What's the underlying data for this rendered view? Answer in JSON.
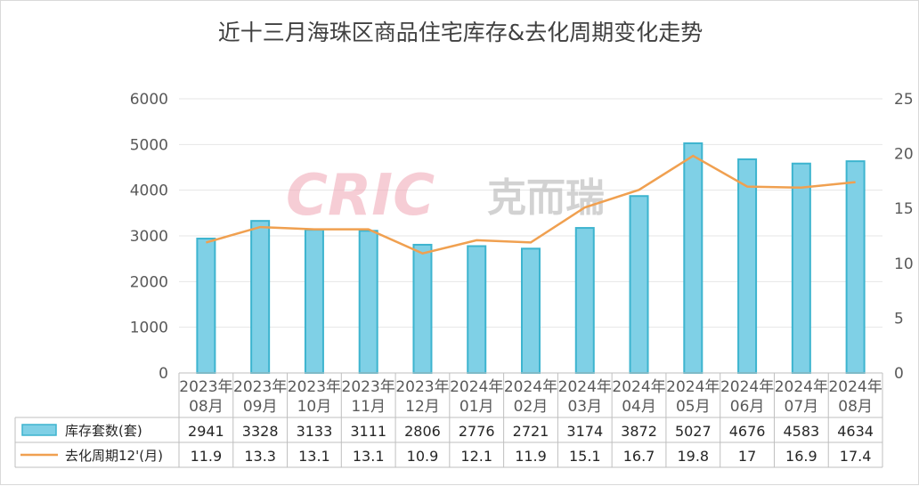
{
  "chart_data": {
    "type": "bar",
    "title": "近十三月海珠区商品住宅库存&去化周期变化走势",
    "categories": [
      [
        "2023年",
        "08月"
      ],
      [
        "2023年",
        "09月"
      ],
      [
        "2023年",
        "10月"
      ],
      [
        "2023年",
        "11月"
      ],
      [
        "2023年",
        "12月"
      ],
      [
        "2024年",
        "01月"
      ],
      [
        "2024年",
        "02月"
      ],
      [
        "2024年",
        "03月"
      ],
      [
        "2024年",
        "04月"
      ],
      [
        "2024年",
        "05月"
      ],
      [
        "2024年",
        "06月"
      ],
      [
        "2024年",
        "07月"
      ],
      [
        "2024年",
        "08月"
      ]
    ],
    "series": [
      {
        "name": "库存套数(套)",
        "type": "bar",
        "axis": "left",
        "color": "#7fd0e6",
        "values": [
          2941,
          3328,
          3133,
          3111,
          2806,
          2776,
          2721,
          3174,
          3872,
          5027,
          4676,
          4583,
          4634
        ],
        "labels": [
          "2941",
          "3328",
          "3133",
          "3111",
          "2806",
          "2776",
          "2721",
          "3174",
          "3872",
          "5027",
          "4676",
          "4583",
          "4634"
        ]
      },
      {
        "name": "去化周期12'(月)",
        "type": "line",
        "axis": "right",
        "color": "#f0a050",
        "values": [
          11.9,
          13.3,
          13.1,
          13.1,
          10.9,
          12.1,
          11.9,
          15.1,
          16.7,
          19.8,
          17,
          16.9,
          17.4
        ],
        "labels": [
          "11.9",
          "13.3",
          "13.1",
          "13.1",
          "10.9",
          "12.1",
          "11.9",
          "15.1",
          "16.7",
          "19.8",
          "17",
          "16.9",
          "17.4"
        ]
      }
    ],
    "y_left": {
      "ylim": [
        0,
        6000
      ],
      "ticks": [
        "0",
        "1000",
        "2000",
        "3000",
        "4000",
        "5000",
        "6000"
      ]
    },
    "y_right": {
      "ylim": [
        0,
        25
      ],
      "ticks": [
        "0",
        "5",
        "10",
        "15",
        "20",
        "25"
      ]
    },
    "grid": true,
    "legend": "data-table"
  },
  "watermark": {
    "brand": "CRIC",
    "cn": "克而瑞"
  }
}
